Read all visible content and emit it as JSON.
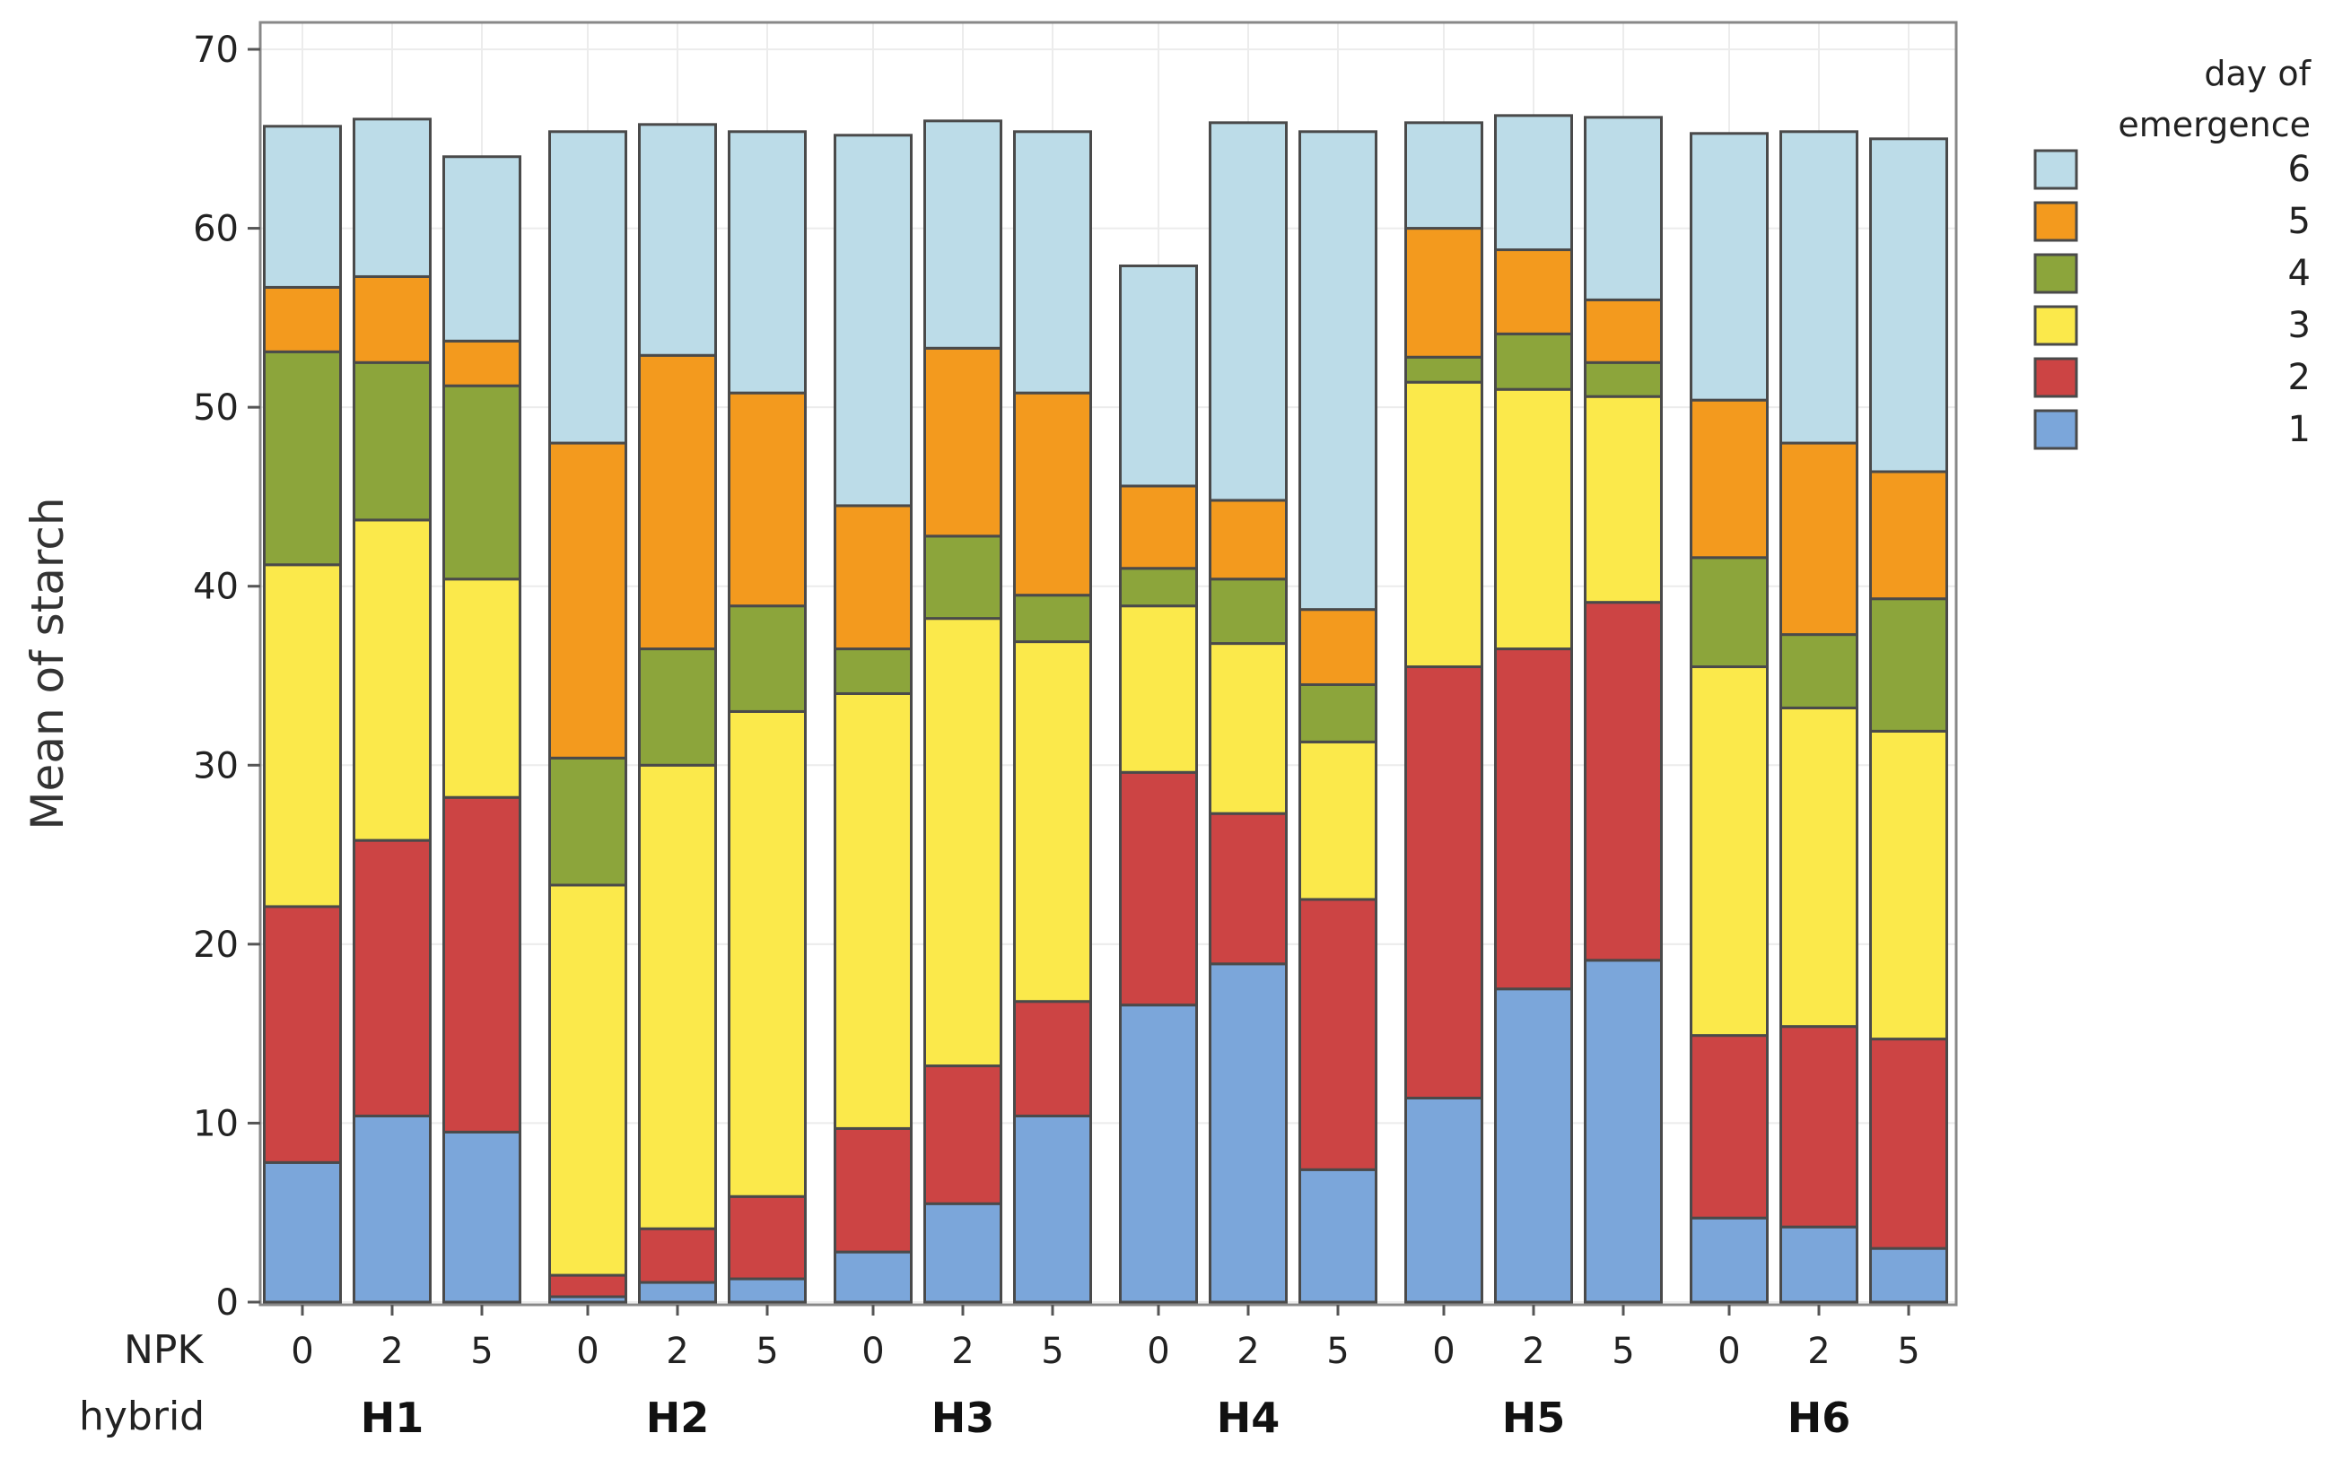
{
  "chart_data": {
    "type": "bar",
    "stacked": true,
    "ylabel": "Mean of starch",
    "ylim": [
      0,
      70
    ],
    "yticks": [
      0,
      10,
      20,
      30,
      40,
      50,
      60,
      70
    ],
    "x_row_labels": {
      "npk": "NPK",
      "hybrid": "hybrid"
    },
    "groups": [
      {
        "hybrid": "H1",
        "npk": [
          "0",
          "2",
          "5"
        ]
      },
      {
        "hybrid": "H2",
        "npk": [
          "0",
          "2",
          "5"
        ]
      },
      {
        "hybrid": "H3",
        "npk": [
          "0",
          "2",
          "5"
        ]
      },
      {
        "hybrid": "H4",
        "npk": [
          "0",
          "2",
          "5"
        ]
      },
      {
        "hybrid": "H5",
        "npk": [
          "0",
          "2",
          "5"
        ]
      },
      {
        "hybrid": "H6",
        "npk": [
          "0",
          "2",
          "5"
        ]
      }
    ],
    "legend": {
      "title_line1": "day of",
      "title_line2": "emergence",
      "position": "top-right"
    },
    "series": [
      {
        "name": "1",
        "color": "#7BA6DA",
        "values": [
          7.8,
          10.4,
          9.5,
          0.3,
          1.1,
          1.3,
          2.8,
          5.5,
          10.4,
          16.6,
          18.9,
          7.4,
          11.4,
          17.5,
          19.1,
          4.7,
          4.2,
          3.0
        ]
      },
      {
        "name": "2",
        "color": "#CC4444",
        "values": [
          14.3,
          15.4,
          18.7,
          1.2,
          3.0,
          4.6,
          6.9,
          7.7,
          6.4,
          13.0,
          8.4,
          15.1,
          24.1,
          19.0,
          20.0,
          10.2,
          11.2,
          11.7
        ]
      },
      {
        "name": "3",
        "color": "#FBE94B",
        "values": [
          19.1,
          17.9,
          12.2,
          21.8,
          25.9,
          27.1,
          24.3,
          25.0,
          20.1,
          9.3,
          9.5,
          8.8,
          15.9,
          14.5,
          11.5,
          20.6,
          17.8,
          17.2
        ]
      },
      {
        "name": "4",
        "color": "#8CA53B",
        "values": [
          11.9,
          8.8,
          10.8,
          7.1,
          6.5,
          5.9,
          2.5,
          4.6,
          2.6,
          2.1,
          3.6,
          3.2,
          1.4,
          3.1,
          1.9,
          6.1,
          4.1,
          7.4
        ]
      },
      {
        "name": "5",
        "color": "#F39A1E",
        "values": [
          3.6,
          4.8,
          2.5,
          17.6,
          16.4,
          11.9,
          8.0,
          10.5,
          11.3,
          4.6,
          4.4,
          4.2,
          7.2,
          4.7,
          3.5,
          8.8,
          10.7,
          7.1
        ]
      },
      {
        "name": "6",
        "color": "#BCDCE8",
        "values": [
          9.0,
          8.8,
          10.3,
          17.4,
          12.9,
          14.6,
          20.7,
          12.7,
          14.6,
          12.3,
          21.1,
          26.7,
          5.9,
          7.5,
          10.2,
          14.9,
          17.4,
          18.6
        ]
      }
    ]
  }
}
